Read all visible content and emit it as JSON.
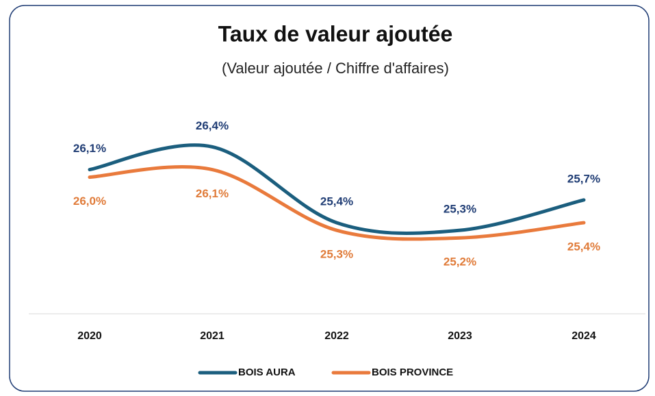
{
  "chart_data": {
    "type": "line",
    "title": "Taux de valeur ajoutée",
    "subtitle": "(Valeur ajoutée / Chiffre d'affaires)",
    "categories": [
      "2020",
      "2021",
      "2022",
      "2023",
      "2024"
    ],
    "series": [
      {
        "name": "BOIS AURA",
        "color": "#1b5e7e",
        "label_color": "#1f3c74",
        "values": [
          26.1,
          26.4,
          25.4,
          25.3,
          25.7
        ],
        "value_labels": [
          "26,1%",
          "26,4%",
          "25,4%",
          "25,3%",
          "25,7%"
        ]
      },
      {
        "name": "BOIS PROVINCE",
        "color": "#e97a3c",
        "label_color": "#e07b39",
        "values": [
          26.0,
          26.1,
          25.3,
          25.2,
          25.4
        ],
        "value_labels": [
          "26,0%",
          "26,1%",
          "25,3%",
          "25,2%",
          "25,4%"
        ]
      }
    ],
    "ylim": [
      24.2,
      26.8
    ],
    "legend": "bottom"
  }
}
